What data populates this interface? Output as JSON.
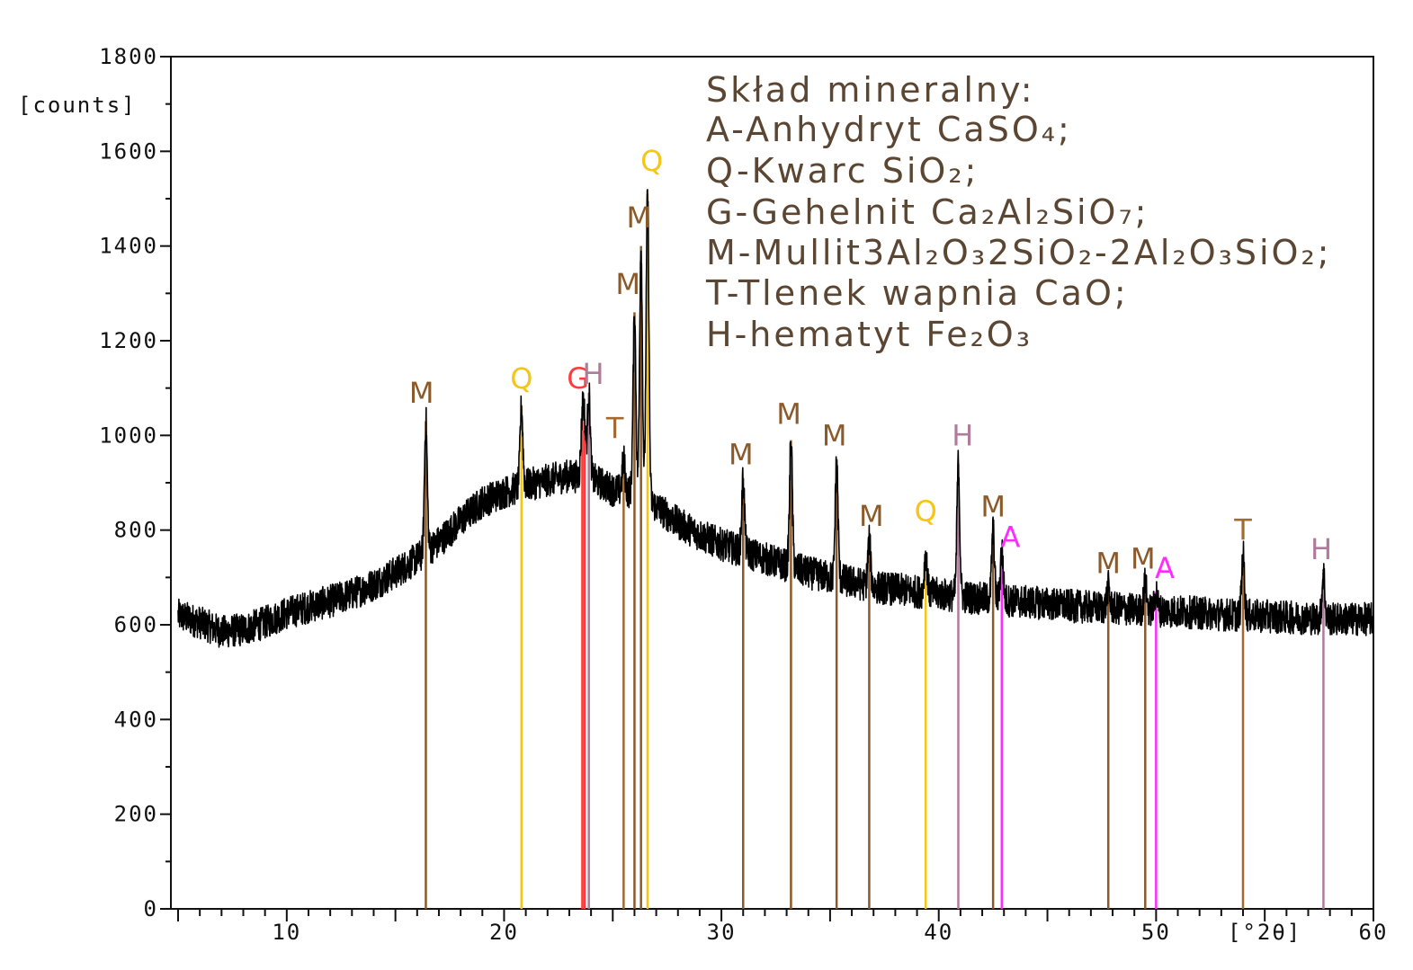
{
  "chart_data": {
    "type": "line",
    "y_unit_label": "[counts]",
    "x_unit_label": "[°2θ]",
    "xlim": [
      5,
      60
    ],
    "ylim": [
      0,
      1800
    ],
    "x_ticks": [
      10,
      20,
      30,
      40,
      50,
      60
    ],
    "y_ticks": [
      0,
      200,
      400,
      600,
      800,
      1000,
      1200,
      1400,
      1600,
      1800
    ],
    "grid": false,
    "legend_placement": "top-right",
    "legend": {
      "title": "Skład mineralny:",
      "entries": [
        "A-Anhydryt CaSO₄;",
        "Q-Kwarc SiO₂;",
        "G-Gehelnit Ca₂Al₂SiO₇;",
        "M-Mullit3Al₂O₃2SiO₂-2Al₂O₃SiO₂;",
        "T-Tlenek wapnia CaO;",
        "H-hematyt Fe₂O₃"
      ]
    },
    "phase_colors": {
      "M": "#8b5a2b",
      "Q": "#f5c518",
      "G": "#ff3b3b",
      "H": "#b07a9a",
      "T": "#a06a30",
      "A": "#ff2bff"
    },
    "background_curve": [
      [
        5,
        620
      ],
      [
        6,
        605
      ],
      [
        7,
        585
      ],
      [
        8,
        590
      ],
      [
        9,
        605
      ],
      [
        10,
        625
      ],
      [
        11,
        638
      ],
      [
        12,
        650
      ],
      [
        13,
        665
      ],
      [
        14,
        685
      ],
      [
        15,
        710
      ],
      [
        16,
        740
      ],
      [
        17,
        775
      ],
      [
        18,
        820
      ],
      [
        19,
        860
      ],
      [
        20,
        880
      ],
      [
        21,
        895
      ],
      [
        22,
        905
      ],
      [
        23,
        915
      ],
      [
        24,
        910
      ],
      [
        25,
        885
      ],
      [
        26,
        880
      ],
      [
        27,
        850
      ],
      [
        28,
        815
      ],
      [
        29,
        790
      ],
      [
        30,
        770
      ],
      [
        31,
        755
      ],
      [
        32,
        740
      ],
      [
        33,
        725
      ],
      [
        34,
        710
      ],
      [
        35,
        700
      ],
      [
        36,
        690
      ],
      [
        37,
        680
      ],
      [
        38,
        675
      ],
      [
        39,
        670
      ],
      [
        40,
        665
      ],
      [
        41,
        660
      ],
      [
        42,
        655
      ],
      [
        43,
        652
      ],
      [
        44,
        648
      ],
      [
        45,
        645
      ],
      [
        46,
        640
      ],
      [
        47,
        637
      ],
      [
        48,
        635
      ],
      [
        49,
        632
      ],
      [
        50,
        630
      ],
      [
        51,
        628
      ],
      [
        52,
        625
      ],
      [
        53,
        622
      ],
      [
        54,
        620
      ],
      [
        55,
        618
      ],
      [
        56,
        616
      ],
      [
        57,
        614
      ],
      [
        58,
        612
      ],
      [
        59,
        612
      ],
      [
        60,
        612
      ]
    ],
    "peaks": [
      {
        "phase": "M",
        "x": 16.4,
        "y": 1030
      },
      {
        "phase": "Q",
        "x": 20.8,
        "y": 1060
      },
      {
        "phase": "G",
        "x": 23.6,
        "y": 1030
      },
      {
        "phase": "G",
        "x": 23.7,
        "y": 1010
      },
      {
        "phase": "H",
        "x": 23.9,
        "y": 1090
      },
      {
        "phase": "T",
        "x": 25.5,
        "y": 950
      },
      {
        "phase": "M",
        "x": 26.0,
        "y": 1260
      },
      {
        "phase": "M",
        "x": 26.3,
        "y": 1400
      },
      {
        "phase": "Q",
        "x": 26.6,
        "y": 1510
      },
      {
        "phase": "M",
        "x": 31.0,
        "y": 910
      },
      {
        "phase": "M",
        "x": 33.2,
        "y": 990
      },
      {
        "phase": "M",
        "x": 35.3,
        "y": 950
      },
      {
        "phase": "M",
        "x": 36.8,
        "y": 780
      },
      {
        "phase": "Q",
        "x": 39.4,
        "y": 750
      },
      {
        "phase": "H",
        "x": 40.9,
        "y": 940
      },
      {
        "phase": "M",
        "x": 42.5,
        "y": 800
      },
      {
        "phase": "A",
        "x": 42.9,
        "y": 760
      },
      {
        "phase": "M",
        "x": 47.8,
        "y": 680
      },
      {
        "phase": "M",
        "x": 49.5,
        "y": 690
      },
      {
        "phase": "A",
        "x": 50.0,
        "y": 670
      },
      {
        "phase": "T",
        "x": 54.0,
        "y": 750
      },
      {
        "phase": "H",
        "x": 57.7,
        "y": 710
      }
    ],
    "peak_labels": [
      {
        "text": "M",
        "phase": "M",
        "x": 16.2,
        "y": 1050
      },
      {
        "text": "Q",
        "phase": "Q",
        "x": 20.8,
        "y": 1080
      },
      {
        "text": "G",
        "phase": "G",
        "x": 23.4,
        "y": 1080
      },
      {
        "text": "H",
        "phase": "H",
        "x": 24.1,
        "y": 1090
      },
      {
        "text": "T",
        "phase": "T",
        "x": 25.1,
        "y": 975
      },
      {
        "text": "M",
        "phase": "M",
        "x": 25.7,
        "y": 1280
      },
      {
        "text": "M",
        "phase": "M",
        "x": 26.2,
        "y": 1420
      },
      {
        "text": "Q",
        "phase": "Q",
        "x": 26.8,
        "y": 1540
      },
      {
        "text": "M",
        "phase": "M",
        "x": 30.9,
        "y": 920
      },
      {
        "text": "M",
        "phase": "M",
        "x": 33.1,
        "y": 1005
      },
      {
        "text": "M",
        "phase": "M",
        "x": 35.2,
        "y": 960
      },
      {
        "text": "M",
        "phase": "M",
        "x": 36.9,
        "y": 790
      },
      {
        "text": "Q",
        "phase": "Q",
        "x": 39.4,
        "y": 800
      },
      {
        "text": "H",
        "phase": "H",
        "x": 41.1,
        "y": 960
      },
      {
        "text": "M",
        "phase": "M",
        "x": 42.5,
        "y": 810
      },
      {
        "text": "A",
        "phase": "A",
        "x": 43.3,
        "y": 745
      },
      {
        "text": "M",
        "phase": "M",
        "x": 47.8,
        "y": 690
      },
      {
        "text": "M",
        "phase": "M",
        "x": 49.4,
        "y": 700
      },
      {
        "text": "A",
        "phase": "A",
        "x": 50.4,
        "y": 680
      },
      {
        "text": "T",
        "phase": "T",
        "x": 54.0,
        "y": 760
      },
      {
        "text": "H",
        "phase": "H",
        "x": 57.6,
        "y": 720
      }
    ]
  }
}
